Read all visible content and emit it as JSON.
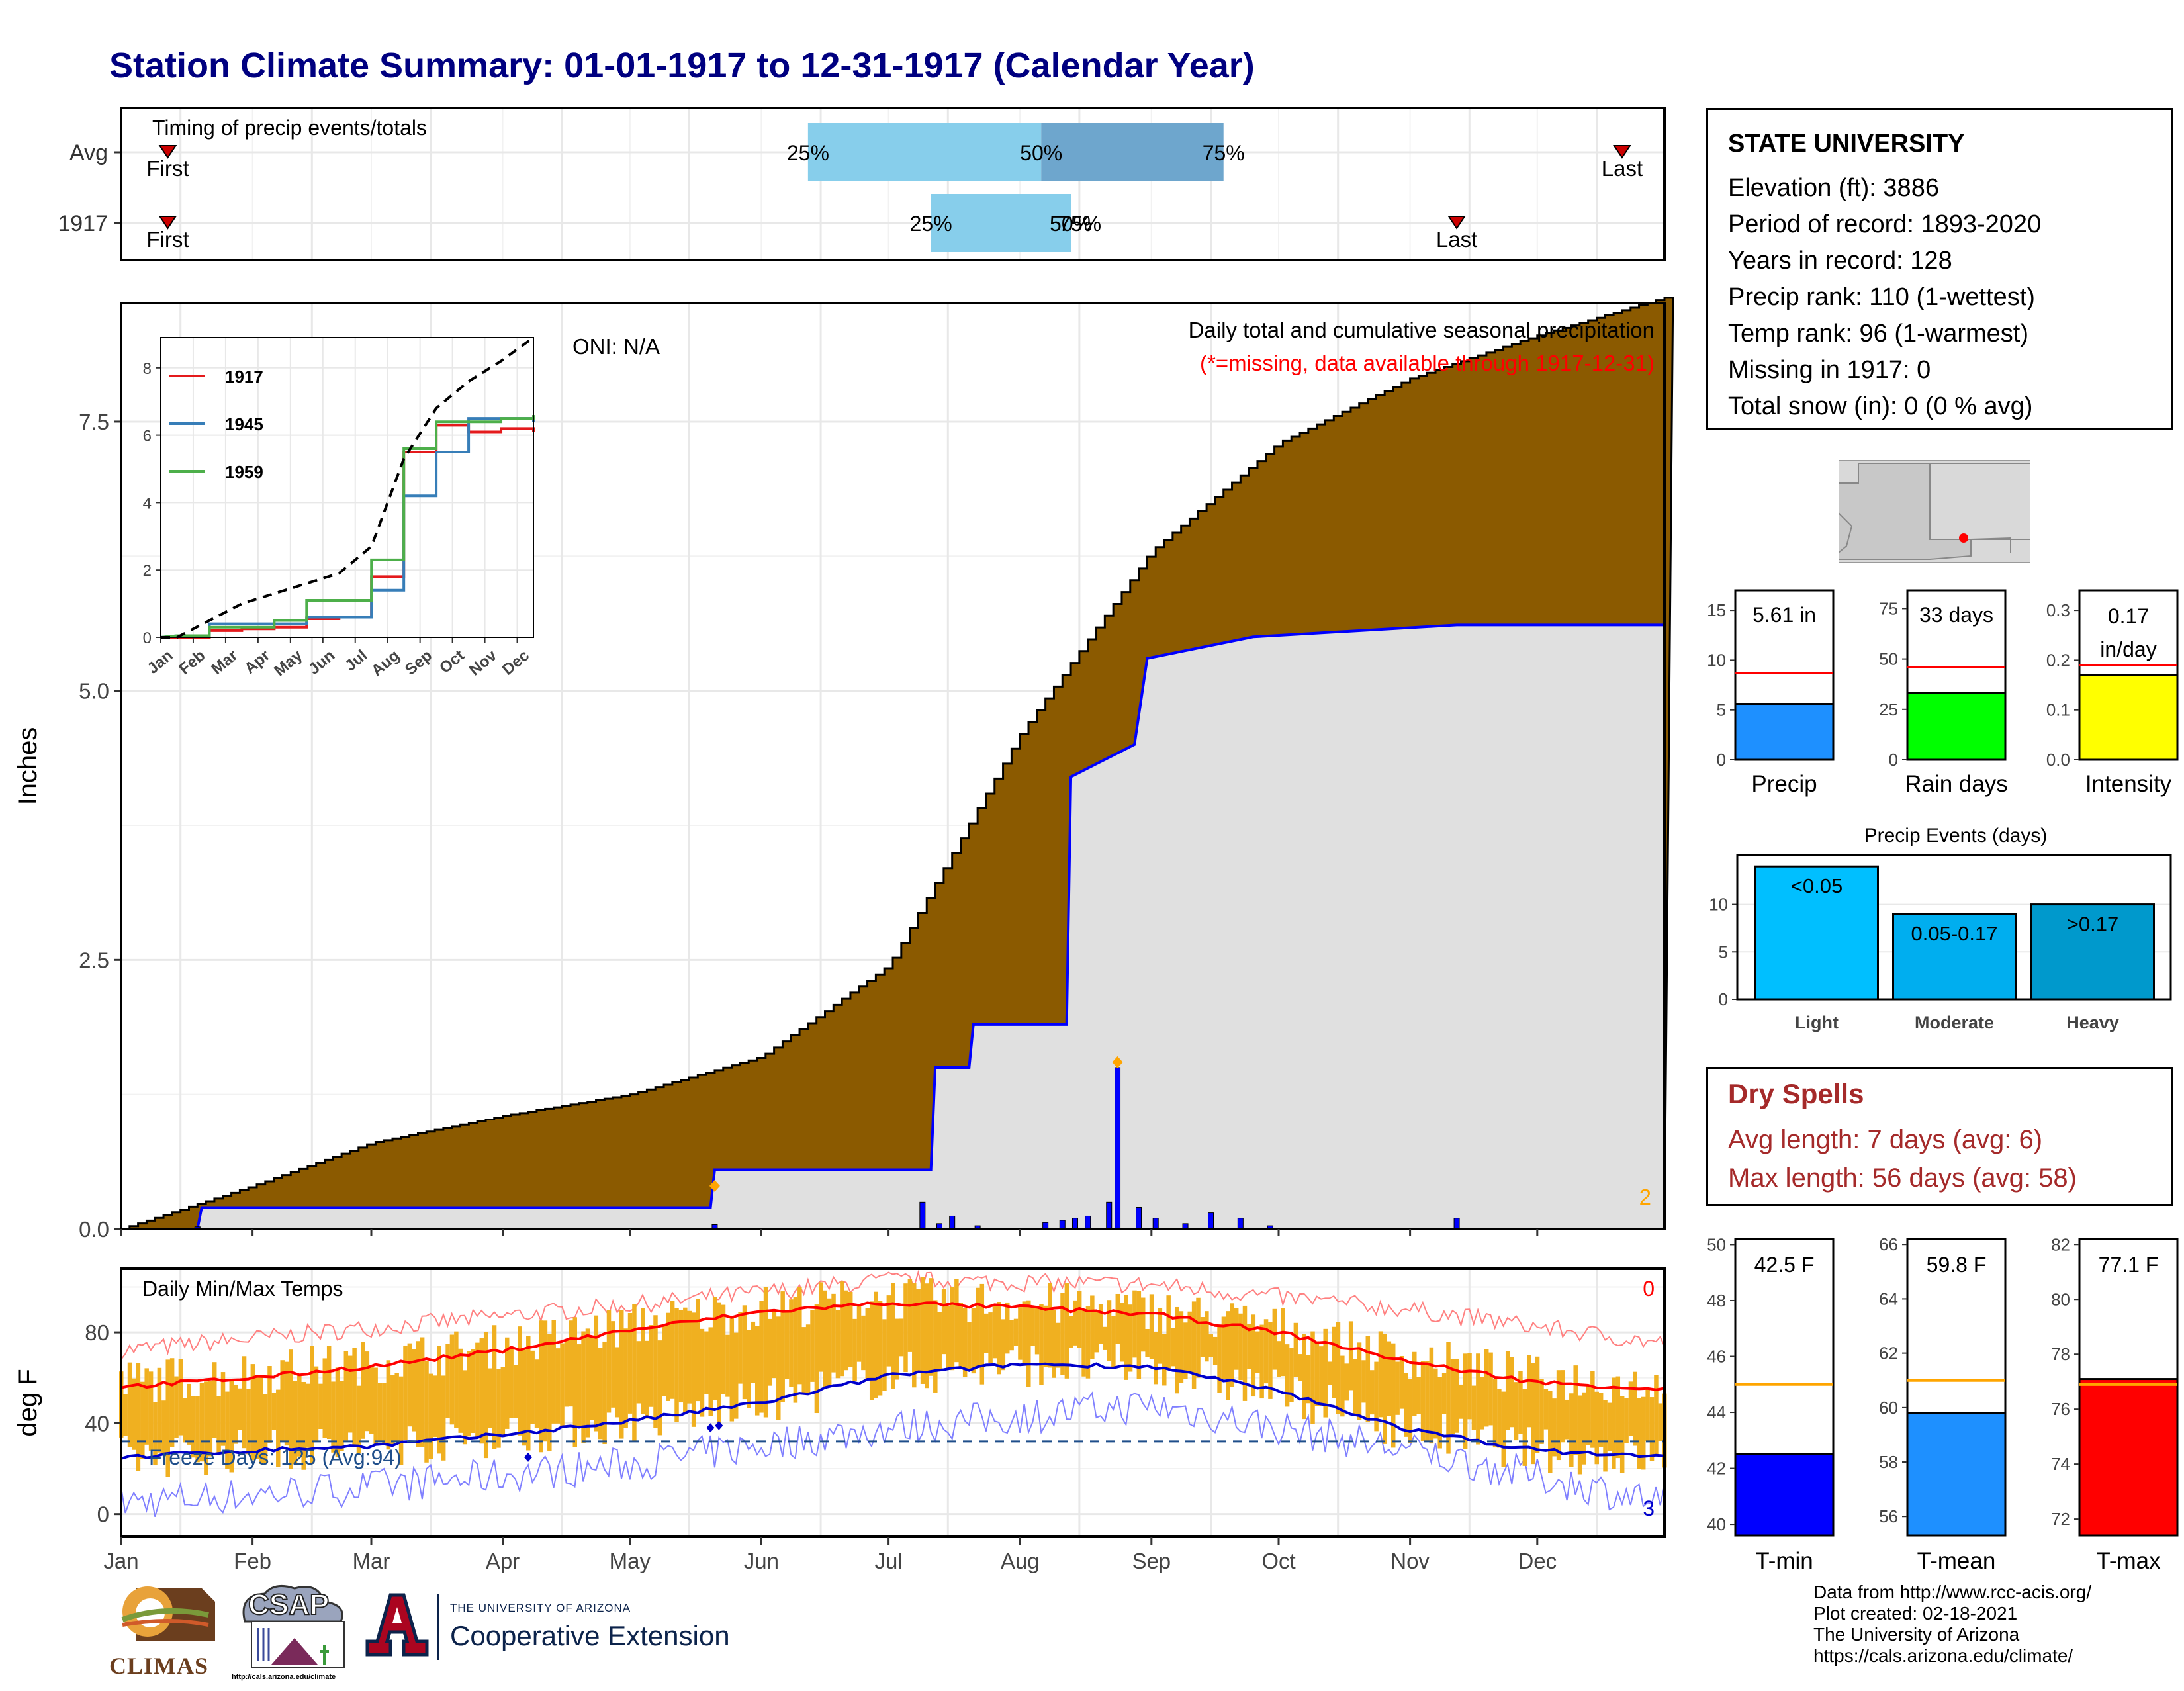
{
  "title": "Station Climate Summary: 01-01-1917 to 12-31-1917 (Calendar Year)",
  "colors": {
    "title": "#000080",
    "cumulative_avg_fill": "#8B5A00",
    "cumulative_year_fill": "#E0E0E0",
    "year_line": "#0000FF",
    "timing_light": "#87CEEB",
    "timing_dark": "#6EA6CD",
    "temp_bars": "#F0B020",
    "max_line": "#FF0000",
    "min_line": "#0000CC",
    "dry_spells": "#A52A2A"
  },
  "timing": {
    "label": "Timing of precip events/totals",
    "rows": [
      {
        "label": "Avg",
        "first_label": "First",
        "last_label": "Last",
        "first_doy": 12,
        "last_doy": 355,
        "p25_doy": 163,
        "p50_doy": 218,
        "p75_doy": 261,
        "p25": "25%",
        "p50": "50%",
        "p75": "75%"
      },
      {
        "label": "1917",
        "first_label": "First",
        "last_label": "Last",
        "first_doy": 12,
        "last_doy": 316,
        "p25_doy": 192,
        "p50_doy": 225,
        "p75_doy": 225,
        "p25": "25%",
        "p50": "50%",
        "p75": "75%"
      }
    ]
  },
  "precip_panel": {
    "ylabel": "Inches",
    "yticks": [
      "0.0",
      "2.5",
      "5.0",
      "7.5"
    ],
    "oni": "ONI: N/A",
    "label1": "Daily total and cumulative seasonal precipitation",
    "label2": "(*=missing, data available through 1917-12-31)",
    "count_label": "2"
  },
  "inset": {
    "yticks": [
      "0",
      "2",
      "4",
      "6",
      "8"
    ],
    "months": [
      "Jan",
      "Feb",
      "Mar",
      "Apr",
      "May",
      "Jun",
      "Jul",
      "Aug",
      "Sep",
      "Oct",
      "Nov",
      "Dec"
    ],
    "legend": [
      {
        "name": "1917",
        "color": "#E41A1C"
      },
      {
        "name": "1945",
        "color": "#377EB8"
      },
      {
        "name": "1959",
        "color": "#4DAF4A"
      }
    ]
  },
  "temp_panel": {
    "ylabel": "deg F",
    "label": "Daily Min/Max Temps",
    "freeze_label": "Freeze Days: 125 (Avg:94)",
    "hot_count": "0",
    "cold_count": "3",
    "yticks": [
      "0",
      "40",
      "80"
    ]
  },
  "months": [
    "Jan",
    "Feb",
    "Mar",
    "Apr",
    "May",
    "Jun",
    "Jul",
    "Aug",
    "Sep",
    "Oct",
    "Nov",
    "Dec"
  ],
  "station": {
    "name": "STATE UNIVERSITY",
    "lines": [
      "Elevation (ft): 3886",
      "Period of record: 1893-2020",
      "Years in record: 128",
      "Precip rank: 110 (1-wettest)",
      "Temp rank: 96 (1-warmest)",
      "Missing in 1917: 0",
      "Total snow (in): 0 (0 % avg)"
    ]
  },
  "mini_bars": [
    {
      "label": "Precip",
      "value_text": "5.61 in",
      "value": 5.61,
      "avg": 8.7,
      "ymax": 17,
      "ticks": [
        "0",
        "5",
        "10",
        "15"
      ],
      "tickvals": [
        0,
        5,
        10,
        15
      ],
      "color": "#1E90FF"
    },
    {
      "label": "Rain days",
      "value_text": "33 days",
      "value": 33,
      "avg": 46,
      "ymax": 84,
      "ticks": [
        "0",
        "25",
        "50",
        "75"
      ],
      "tickvals": [
        0,
        25,
        50,
        75
      ],
      "color": "#00FF00"
    },
    {
      "label": "Intensity",
      "value_text": "0.17 in/day",
      "value_line1": "0.17",
      "value_line2": "in/day",
      "value": 0.17,
      "avg": 0.19,
      "ymax": 0.34,
      "ticks": [
        "0.0",
        "0.1",
        "0.2",
        "0.3"
      ],
      "tickvals": [
        0,
        0.1,
        0.2,
        0.3
      ],
      "color": "#FFFF00"
    }
  ],
  "events": {
    "title": "Precip Events (days)",
    "ticks": [
      "0",
      "5",
      "10"
    ],
    "bars": [
      {
        "label": "Light",
        "inner": "<0.05",
        "value": 14,
        "color": "#00BFFF"
      },
      {
        "label": "Moderate",
        "inner": "0.05-0.17",
        "value": 9,
        "color": "#00AEEF"
      },
      {
        "label": "Heavy",
        "inner": ">0.17",
        "value": 10,
        "color": "#0099CC"
      }
    ]
  },
  "dry_spells": {
    "title": "Dry Spells",
    "avg": "Avg length: 7 days (avg: 6)",
    "max": "Max length: 56 days (avg: 58)"
  },
  "temp_bars": [
    {
      "label": "T-min",
      "value_text": "42.5 F",
      "value": 42.5,
      "avg": 45.0,
      "ymin": 39.6,
      "ymax": 50.2,
      "ticks": [
        "40",
        "42",
        "44",
        "46",
        "48",
        "50"
      ],
      "color": "#0000FF"
    },
    {
      "label": "T-mean",
      "value_text": "59.8 F",
      "value": 59.8,
      "avg": 61.0,
      "ymin": 55.3,
      "ymax": 66.2,
      "ticks": [
        "56",
        "58",
        "60",
        "62",
        "64",
        "66"
      ],
      "color": "#1E90FF"
    },
    {
      "label": "T-max",
      "value_text": "77.1 F",
      "value": 77.1,
      "avg": 76.9,
      "ymin": 71.4,
      "ymax": 82.2,
      "ticks": [
        "72",
        "74",
        "76",
        "78",
        "80",
        "82"
      ],
      "color": "#FF0000"
    }
  ],
  "credits": [
    "Data from http://www.rcc-acis.org/",
    "Plot created: 02-18-2021",
    "The University of Arizona",
    "https://cals.arizona.edu/climate/"
  ],
  "logos": {
    "climas": "CLIMAS",
    "csap": "CSAP",
    "csap_url": "http://cals.arizona.edu/climate",
    "ua_top": "THE UNIVERSITY OF ARIZONA",
    "ua_bottom": "Cooperative Extension"
  },
  "chart_data": [
    {
      "type": "area",
      "title": "Daily total and cumulative seasonal precipitation",
      "ylabel": "Inches",
      "ylim": [
        0,
        8.6
      ],
      "x_unit": "day of year",
      "avg_cumulative": {
        "x": [
          1,
          32,
          60,
          91,
          121,
          152,
          182,
          213,
          244,
          274,
          305,
          335,
          365
        ],
        "y": [
          0.0,
          0.4,
          0.8,
          1.05,
          1.25,
          1.6,
          2.45,
          4.6,
          6.3,
          7.3,
          7.9,
          8.3,
          8.65
        ]
      },
      "year_cumulative": {
        "x": [
          1,
          19,
          20,
          140,
          141,
          192,
          193,
          201,
          202,
          224,
          225,
          240,
          243,
          268,
          316,
          365
        ],
        "y": [
          0,
          0,
          0.2,
          0.2,
          0.55,
          0.55,
          1.5,
          1.5,
          1.9,
          1.9,
          4.2,
          4.5,
          5.3,
          5.5,
          5.61,
          5.61
        ]
      },
      "daily_precip": {
        "x": [
          19,
          141,
          190,
          194,
          197,
          203,
          219,
          223,
          226,
          229,
          234,
          236,
          241,
          245,
          252,
          258,
          265,
          272,
          316
        ],
        "y": [
          0.02,
          0.04,
          0.25,
          0.05,
          0.12,
          0.03,
          0.06,
          0.08,
          0.1,
          0.12,
          0.25,
          1.5,
          0.2,
          0.1,
          0.05,
          0.15,
          0.1,
          0.03,
          0.1
        ]
      }
    },
    {
      "type": "line",
      "title": "",
      "x": [
        "Jan",
        "Feb",
        "Mar",
        "Apr",
        "May",
        "Jun",
        "Jul",
        "Aug",
        "Sep",
        "Oct",
        "Nov",
        "Dec"
      ],
      "series": [
        {
          "name": "1917",
          "values": [
            0.0,
            0.2,
            0.25,
            0.3,
            0.55,
            0.6,
            1.8,
            5.5,
            6.3,
            6.1,
            6.2,
            6.1
          ]
        },
        {
          "name": "1945",
          "values": [
            0.05,
            0.4,
            0.4,
            0.4,
            0.6,
            0.6,
            1.4,
            4.2,
            5.5,
            6.5,
            6.5,
            6.4
          ]
        },
        {
          "name": "1959",
          "values": [
            0.05,
            0.3,
            0.3,
            0.5,
            1.1,
            1.1,
            2.3,
            5.6,
            6.4,
            6.4,
            6.5,
            6.6
          ]
        },
        {
          "name": "",
          "values": [
            0.0,
            0.5,
            1.0,
            1.3,
            1.6,
            1.9,
            2.7,
            5.3,
            6.8,
            7.6,
            8.2,
            8.9
          ]
        }
      ],
      "ylim": [
        0,
        8.9
      ]
    },
    {
      "type": "line",
      "title": "Daily Min/Max Temps",
      "ylabel": "deg F",
      "ylim": [
        -10,
        108
      ],
      "x_unit": "day of year",
      "avg_max": {
        "x": [
          1,
          32,
          60,
          91,
          121,
          152,
          182,
          213,
          244,
          274,
          305,
          335,
          365
        ],
        "y": [
          56,
          60,
          65,
          72,
          81,
          89,
          93,
          91,
          88,
          80,
          67,
          58,
          55
        ]
      },
      "avg_min": {
        "x": [
          1,
          32,
          60,
          91,
          121,
          152,
          182,
          213,
          244,
          274,
          305,
          335,
          365
        ],
        "y": [
          25,
          28,
          30,
          35,
          41,
          49,
          61,
          66,
          65,
          54,
          37,
          28,
          25
        ]
      },
      "record_max": {
        "x": [
          1,
          60,
          121,
          182,
          244,
          305,
          365
        ],
        "y": [
          72,
          82,
          92,
          103,
          101,
          90,
          75
        ]
      },
      "record_min": {
        "x": [
          1,
          60,
          121,
          182,
          244,
          305,
          365
        ],
        "y": [
          5,
          12,
          22,
          38,
          48,
          28,
          5
        ]
      },
      "freeze_line": 32
    },
    {
      "type": "bar",
      "categories": [
        "Light",
        "Moderate",
        "Heavy"
      ],
      "values": [
        14,
        9,
        10
      ],
      "title": "Precip Events (days)"
    }
  ]
}
